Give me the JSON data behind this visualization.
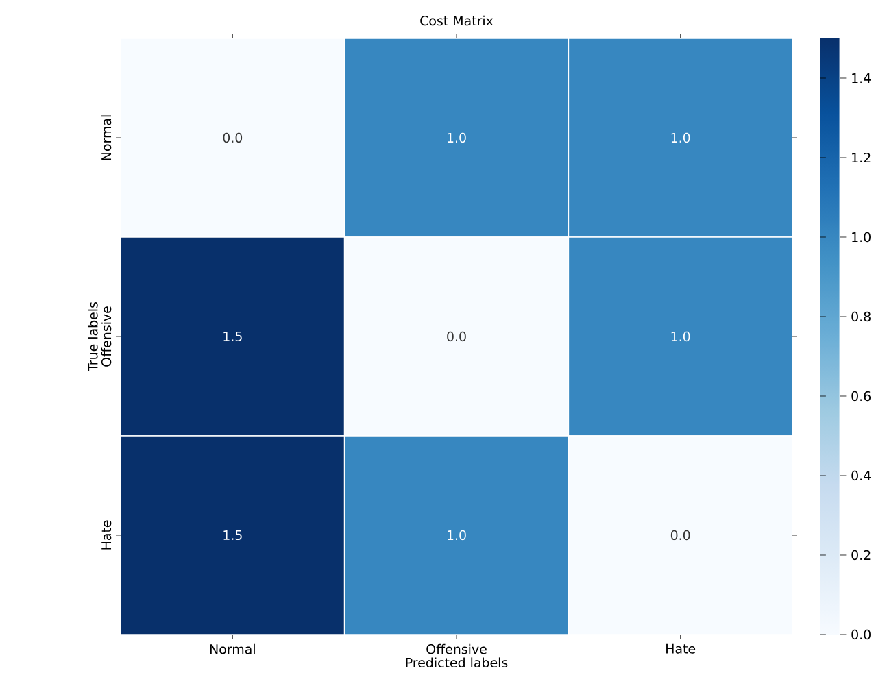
{
  "chart_data": {
    "type": "heatmap",
    "title": "Cost Matrix",
    "xlabel": "Predicted labels",
    "ylabel": "True labels",
    "categories": [
      "Normal",
      "Offensive",
      "Hate"
    ],
    "y_categories": [
      "Normal",
      "Offensive",
      "Hate"
    ],
    "cells": [
      [
        0,
        1,
        1
      ],
      [
        1.5,
        0,
        1
      ],
      [
        1.5,
        1,
        0
      ]
    ],
    "cell_labels": [
      [
        "0.0",
        "1.0",
        "1.0"
      ],
      [
        "1.5",
        "0.0",
        "1.0"
      ],
      [
        "1.5",
        "1.0",
        "0.0"
      ]
    ],
    "clim": [
      0,
      1.5
    ],
    "cticks": [
      {
        "value": 0,
        "label": "0.0"
      },
      {
        "value": 0.2,
        "label": "0.2"
      },
      {
        "value": 0.4,
        "label": "0.4"
      },
      {
        "value": 0.6,
        "label": "0.6"
      },
      {
        "value": 0.8,
        "label": "0.8"
      },
      {
        "value": 1.0,
        "label": "1.0"
      },
      {
        "value": 1.2,
        "label": "1.2"
      },
      {
        "value": 1.4,
        "label": "1.4"
      }
    ]
  }
}
